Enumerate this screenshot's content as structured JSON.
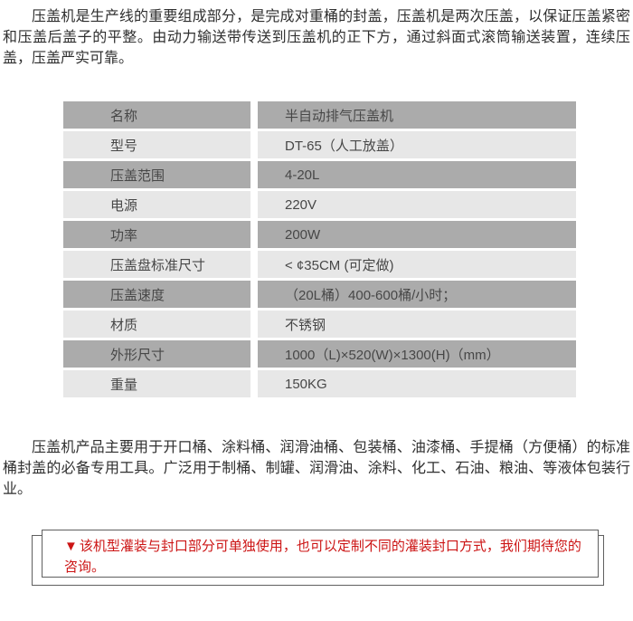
{
  "intro": {
    "text": "压盖机是生产线的重要组成部分，是完成对重桶的封盖，压盖机是两次压盖，以保证压盖紧密和压盖后盖子的平整。由动力输送带传送到压盖机的正下方，通过斜面式滚筒输送装置，连续压盖，压盖严实可靠。"
  },
  "spec_table": {
    "rows": [
      {
        "label": "名称",
        "value": "半自动排气压盖机"
      },
      {
        "label": "型号",
        "value": "DT-65（人工放盖）"
      },
      {
        "label": "压盖范围",
        "value": "4-20L"
      },
      {
        "label": "电源",
        "value": "220V"
      },
      {
        "label": "功率",
        "value": "200W"
      },
      {
        "label": "压盖盘标准尺寸",
        "value": "< ¢35CM (可定做)"
      },
      {
        "label": "压盖速度",
        "value": "（20L桶）400-600桶/小时；"
      },
      {
        "label": "材质",
        "value": "不锈钢"
      },
      {
        "label": "外形尺寸",
        "value": "1000（L)×520(W)×1300(H)（mm）"
      },
      {
        "label": "重量",
        "value": "150KG"
      }
    ]
  },
  "usage": {
    "text": "压盖机产品主要用于开口桶、涂料桶、润滑油桶、包装桶、油漆桶、手提桶（方便桶）的标准桶封盖的必备专用工具。广泛用于制桶、制罐、润滑油、涂料、化工、石油、粮油、等液体包装行业。"
  },
  "notice": {
    "marker": "▼",
    "text": "该机型灌装与封口部分可单独使用，也可以定制不同的灌装封口方式，我们期待您的咨询。"
  },
  "colors": {
    "row_dark": "#ababab",
    "row_light": "#e7e7e7",
    "table_text": "#474747",
    "body_text": "#2f2f2f",
    "notice_text": "#cc1414",
    "notice_border": "#5f5f5f"
  }
}
